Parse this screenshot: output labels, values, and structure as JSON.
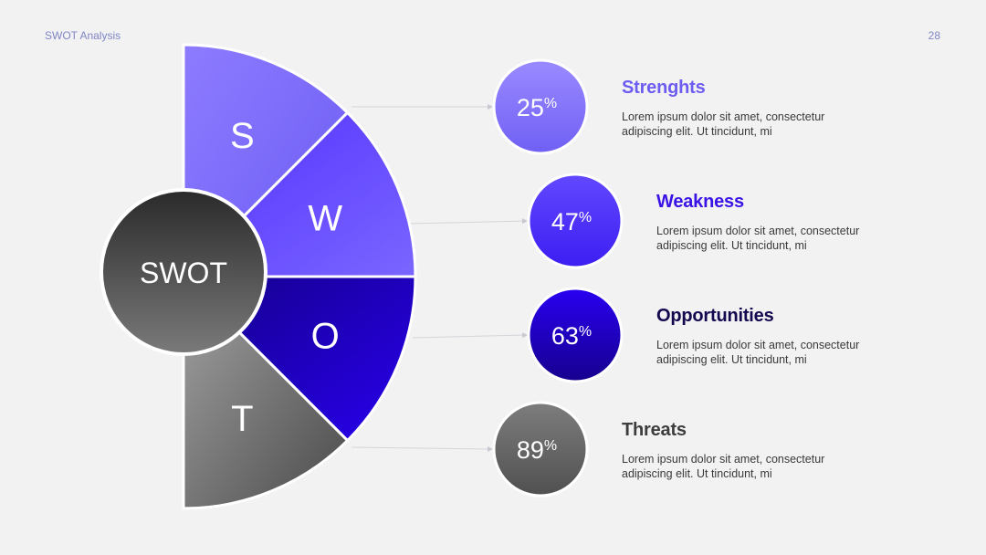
{
  "header": {
    "title": "SWOT Analysis",
    "page_number": "28"
  },
  "center_label": "SWOT",
  "items": [
    {
      "letter": "S",
      "percent": "25",
      "percent_sign": "%",
      "title": "Strenghts",
      "text_line1": "Lorem ipsum dolor sit amet, consectetur",
      "text_line2": "adipiscing elit. Ut tincidunt, mi",
      "title_color": "#6c5cf0",
      "slice_colors": [
        "#8d7cff",
        "#6b5bf4"
      ],
      "circle_colors": [
        "#9a8aff",
        "#7060f4"
      ]
    },
    {
      "letter": "W",
      "percent": "47",
      "percent_sign": "%",
      "title": "Weakness",
      "text_line1": "Lorem ipsum dolor sit amet, consectetur",
      "text_line2": "adipiscing elit. Ut tincidunt, mi",
      "title_color": "#3a12e6",
      "slice_colors": [
        "#5230ff",
        "#7a66ff"
      ],
      "circle_colors": [
        "#6248ff",
        "#3c1ef2"
      ]
    },
    {
      "letter": "O",
      "percent": "63",
      "percent_sign": "%",
      "title": "Opportunities",
      "text_line1": "Lorem ipsum dolor sit amet, consectetur",
      "text_line2": "adipiscing elit. Ut tincidunt, mi",
      "title_color": "#14084f",
      "slice_colors": [
        "#14008a",
        "#2a00ee"
      ],
      "circle_colors": [
        "#2a00f0",
        "#16008e"
      ]
    },
    {
      "letter": "T",
      "percent": "89",
      "percent_sign": "%",
      "title": "Threats",
      "text_line1": "Lorem ipsum dolor sit amet, consectetur",
      "text_line2": "adipiscing elit. Ut tincidunt, mi",
      "title_color": "#3d3d3d",
      "slice_colors": [
        "#a3a3a3",
        "#4a4a4a"
      ],
      "circle_colors": [
        "#7d7d7d",
        "#505050"
      ]
    }
  ],
  "center_colors": [
    "#2a2a2a",
    "#7a7a7a"
  ]
}
